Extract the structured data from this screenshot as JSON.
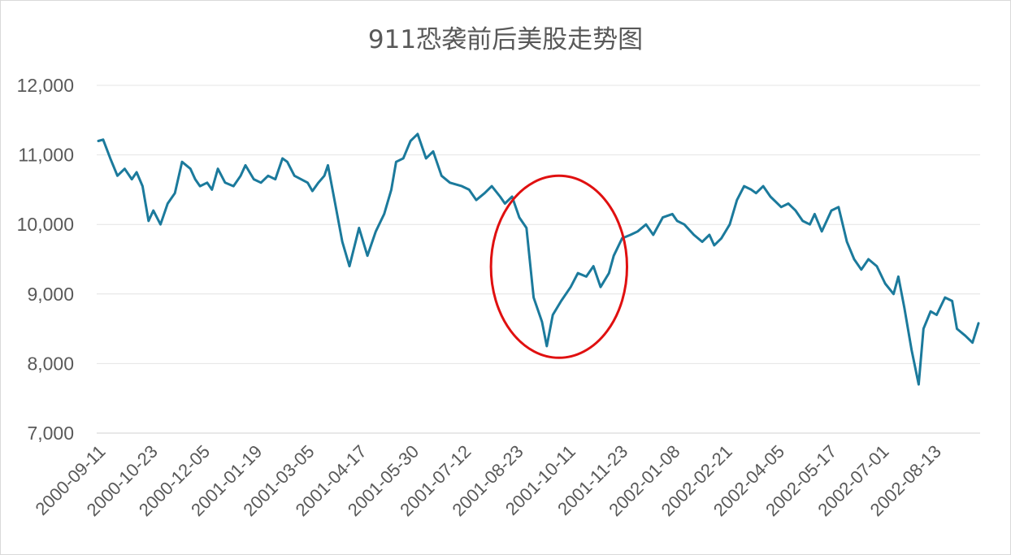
{
  "chart_data": {
    "type": "line",
    "title": "911恐袭前后美股走势图",
    "xlabel": "",
    "ylabel": "",
    "ylim": [
      7000,
      12000
    ],
    "yticks": [
      7000,
      8000,
      9000,
      10000,
      11000,
      12000
    ],
    "ytick_labels": [
      "7,000",
      "8,000",
      "9,000",
      "10,000",
      "11,000",
      "12,000"
    ],
    "xticks": [
      "2000-09-11",
      "2000-10-23",
      "2000-12-05",
      "2001-01-19",
      "2001-03-05",
      "2001-04-17",
      "2001-05-30",
      "2001-07-12",
      "2001-08-23",
      "2001-10-11",
      "2001-11-23",
      "2002-01-08",
      "2002-02-21",
      "2002-04-05",
      "2002-05-17",
      "2002-07-01",
      "2002-08-13"
    ],
    "grid": true,
    "legend": "none",
    "series_color": "#1b7a9c",
    "annotation": {
      "shape": "ellipse",
      "color": "#e01010",
      "around_x": [
        "2001-08-23",
        "2001-11-23"
      ],
      "around_y": [
        8200,
        10700
      ]
    },
    "series": [
      {
        "x": [
          "2000-09-11",
          "2000-09-15",
          "2000-09-21",
          "2000-09-27",
          "2000-10-03",
          "2000-10-09",
          "2000-10-13",
          "2000-10-18",
          "2000-10-23",
          "2000-10-27",
          "2000-11-02",
          "2000-11-08",
          "2000-11-14",
          "2000-11-20",
          "2000-11-27",
          "2000-12-01",
          "2000-12-05",
          "2000-12-11",
          "2000-12-15",
          "2000-12-20",
          "2000-12-26",
          "2001-01-02",
          "2001-01-08",
          "2001-01-12",
          "2001-01-19",
          "2001-01-25",
          "2001-01-31",
          "2001-02-06",
          "2001-02-12",
          "2001-02-16",
          "2001-02-22",
          "2001-03-05",
          "2001-03-09",
          "2001-03-14",
          "2001-03-19",
          "2001-03-22",
          "2001-03-28",
          "2001-04-03",
          "2001-04-09",
          "2001-04-17",
          "2001-04-24",
          "2001-05-01",
          "2001-05-08",
          "2001-05-14",
          "2001-05-18",
          "2001-05-24",
          "2001-05-30",
          "2001-06-05",
          "2001-06-12",
          "2001-06-18",
          "2001-06-25",
          "2001-07-02",
          "2001-07-12",
          "2001-07-18",
          "2001-07-24",
          "2001-07-31",
          "2001-08-06",
          "2001-08-13",
          "2001-08-17",
          "2001-08-23",
          "2001-08-29",
          "2001-09-04",
          "2001-09-10",
          "2001-09-17",
          "2001-09-21",
          "2001-09-26",
          "2001-10-03",
          "2001-10-11",
          "2001-10-17",
          "2001-10-24",
          "2001-10-30",
          "2001-11-05",
          "2001-11-12",
          "2001-11-16",
          "2001-11-23",
          "2001-11-30",
          "2001-12-06",
          "2001-12-13",
          "2001-12-19",
          "2001-12-27",
          "2002-01-04",
          "2002-01-08",
          "2002-01-14",
          "2002-01-22",
          "2002-01-29",
          "2002-02-04",
          "2002-02-08",
          "2002-02-14",
          "2002-02-21",
          "2002-02-27",
          "2002-03-05",
          "2002-03-11",
          "2002-03-15",
          "2002-03-21",
          "2002-03-27",
          "2002-04-05",
          "2002-04-11",
          "2002-04-17",
          "2002-04-23",
          "2002-04-29",
          "2002-05-03",
          "2002-05-09",
          "2002-05-17",
          "2002-05-23",
          "2002-05-30",
          "2002-06-05",
          "2002-06-11",
          "2002-06-17",
          "2002-06-24",
          "2002-07-01",
          "2002-07-08",
          "2002-07-12",
          "2002-07-17",
          "2002-07-23",
          "2002-07-29",
          "2002-08-02",
          "2002-08-08",
          "2002-08-13",
          "2002-08-20",
          "2002-08-26",
          "2002-08-30",
          "2002-09-06",
          "2002-09-12",
          "2002-09-17"
        ],
        "values": [
          11200,
          11220,
          10950,
          10700,
          10800,
          10650,
          10750,
          10550,
          10050,
          10200,
          10000,
          10300,
          10450,
          10900,
          10800,
          10650,
          10550,
          10600,
          10500,
          10800,
          10600,
          10550,
          10700,
          10850,
          10650,
          10600,
          10700,
          10650,
          10950,
          10900,
          10700,
          10600,
          10480,
          10600,
          10700,
          10850,
          10300,
          9750,
          9400,
          9950,
          9550,
          9900,
          10150,
          10500,
          10900,
          10950,
          11200,
          11300,
          10950,
          11050,
          10700,
          10600,
          10550,
          10500,
          10350,
          10450,
          10550,
          10400,
          10300,
          10400,
          10100,
          9950,
          8950,
          8600,
          8250,
          8700,
          8900,
          9100,
          9300,
          9250,
          9400,
          9100,
          9300,
          9550,
          9800,
          9850,
          9900,
          10000,
          9850,
          10100,
          10150,
          10050,
          10000,
          9850,
          9750,
          9850,
          9700,
          9800,
          10000,
          10350,
          10550,
          10500,
          10450,
          10550,
          10400,
          10250,
          10300,
          10200,
          10050,
          10000,
          10150,
          9900,
          10200,
          10250,
          9750,
          9500,
          9350,
          9500,
          9400,
          9150,
          9000,
          9250,
          8800,
          8200,
          7700,
          8500,
          8750,
          8700,
          8950,
          8900,
          8500,
          8400,
          8300,
          8580
        ],
        "label_note": ""
      }
    ]
  }
}
